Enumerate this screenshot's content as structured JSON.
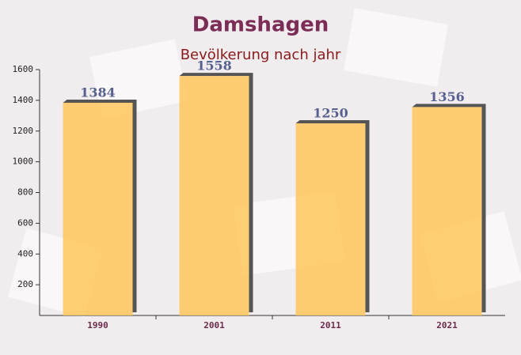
{
  "chart_data": {
    "type": "bar",
    "title": "Damshagen",
    "subtitle": "Bevölkerung nach jahr",
    "categories": [
      "1990",
      "2001",
      "2011",
      "2021"
    ],
    "values": [
      1384,
      1558,
      1250,
      1356
    ],
    "color": "#ffc55c",
    "ylim": [
      0,
      1600
    ],
    "yticks": [
      200,
      400,
      600,
      800,
      1000,
      1200,
      1400,
      1600
    ]
  }
}
